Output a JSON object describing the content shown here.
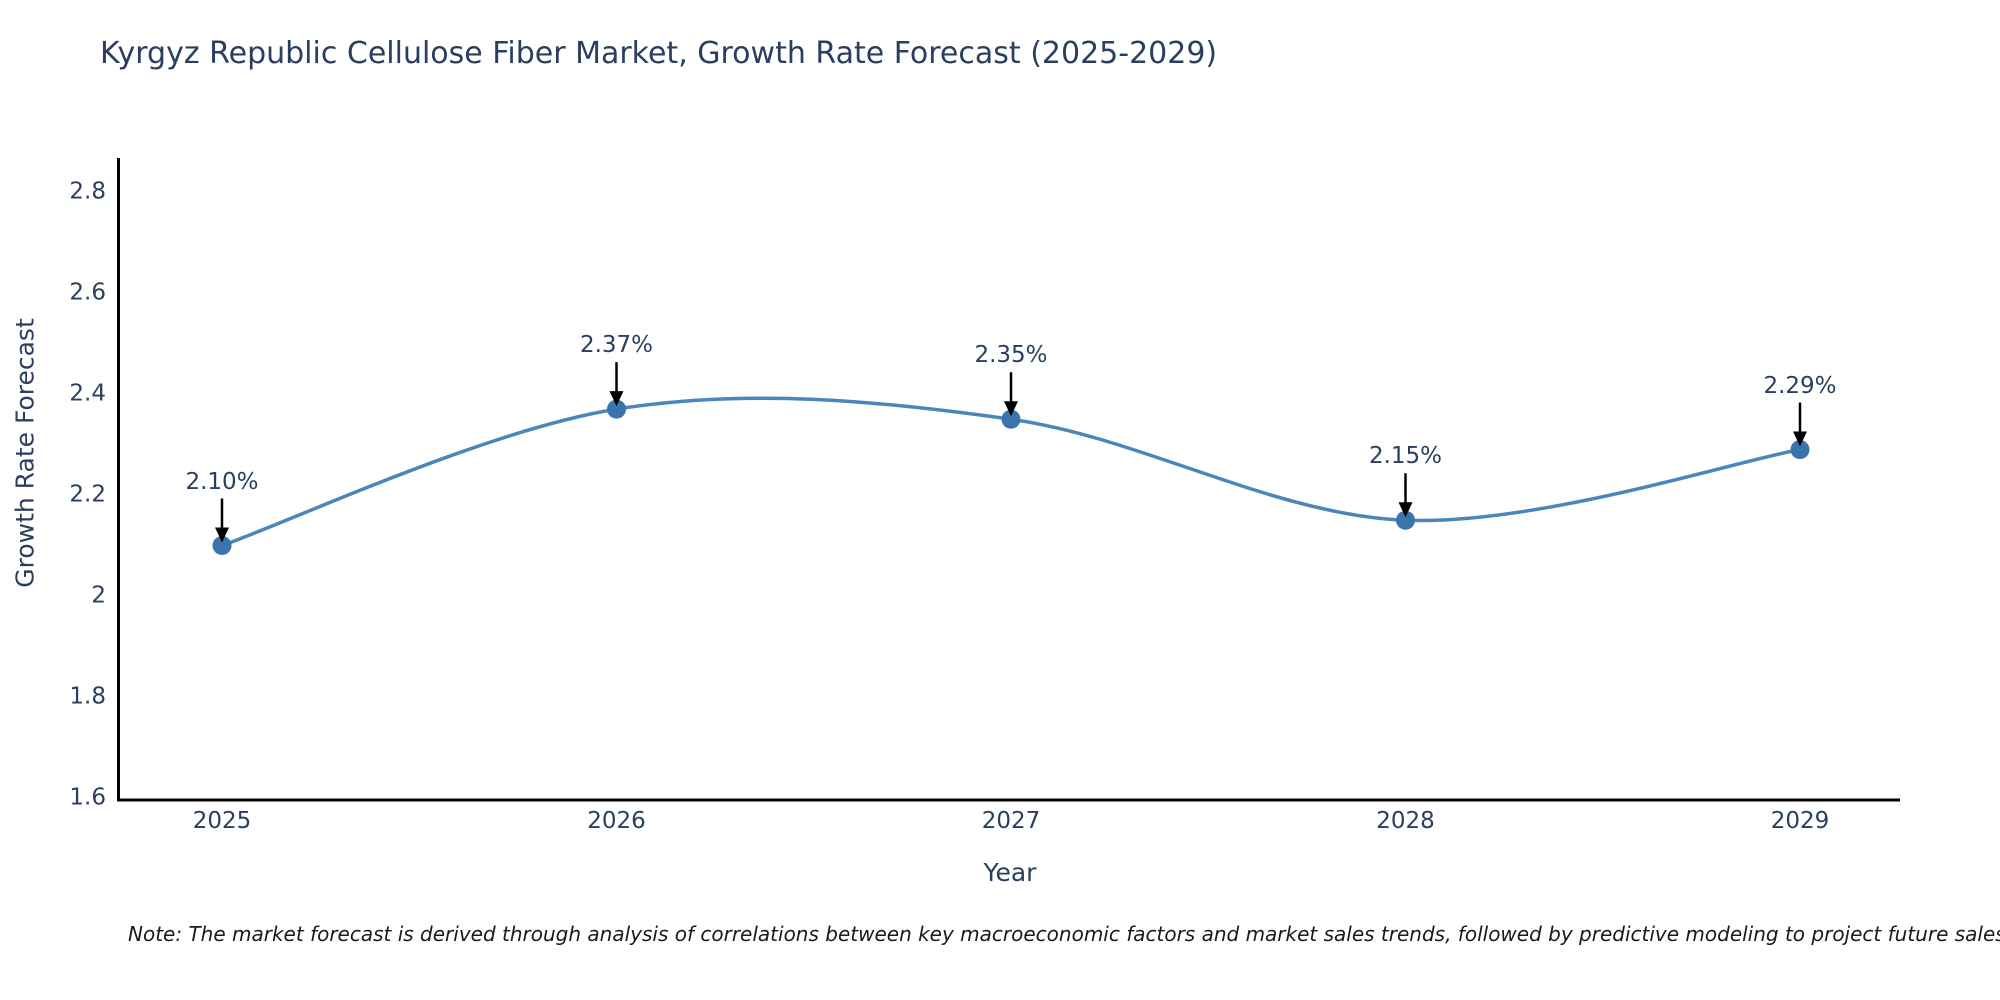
{
  "title": "Kyrgyz Republic Cellulose Fiber Market, Growth Rate Forecast (2025-2029)",
  "note": "Note: The market forecast is derived through analysis of correlations between key macroeconomic factors and market sales trends, followed by predictive modeling to project future sales",
  "chart_data": {
    "type": "line",
    "title": "Kyrgyz Republic Cellulose Fiber Market, Growth Rate Forecast (2025-2029)",
    "xlabel": "Year",
    "ylabel": "Growth Rate Forecast",
    "x": [
      2025,
      2026,
      2027,
      2028,
      2029
    ],
    "values": [
      2.1,
      2.37,
      2.35,
      2.15,
      2.29
    ],
    "point_labels": [
      "2.10%",
      "2.37%",
      "2.35%",
      "2.15%",
      "2.29%"
    ],
    "x_tick_labels": [
      "2025",
      "2026",
      "2027",
      "2028",
      "2029"
    ],
    "y_ticks": [
      1.6,
      1.8,
      2.0,
      2.2,
      2.4,
      2.6,
      2.8
    ],
    "y_tick_labels": [
      "1.6",
      "1.8",
      "2",
      "2.2",
      "2.4",
      "2.6",
      "2.8"
    ],
    "ylim": [
      1.6,
      2.87
    ],
    "grid": false,
    "legend_position": "none",
    "line_shape": "spline",
    "colors": {
      "line": "#4a86ba",
      "marker": "#3a74ad",
      "text": "#2a3f5f",
      "axis": "#000000",
      "annotation_arrow": "#000000",
      "background": "#ffffff"
    }
  }
}
